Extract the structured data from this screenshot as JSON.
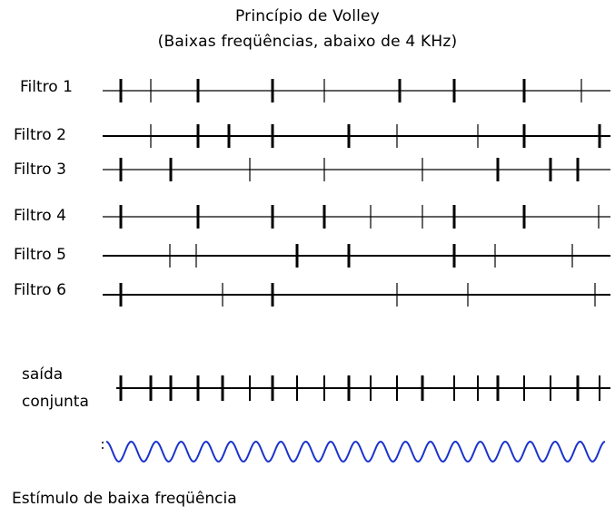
{
  "title": "Princípio de Volley",
  "subtitle": "(Baixas freqüências, abaixo de 4 KHz)",
  "filters": [
    {
      "label": "Filtro 1",
      "thick": [
        133,
        218,
        300,
        440,
        500,
        577
      ],
      "thin": [
        166,
        357,
        640
      ]
    },
    {
      "label": "Filtro 2",
      "thick": [
        218,
        252,
        300,
        384,
        577,
        660
      ],
      "thin": [
        166,
        437,
        526
      ]
    },
    {
      "label": "Filtro 3",
      "thick": [
        133,
        188,
        548,
        606,
        636
      ],
      "thin": [
        275,
        357,
        465
      ]
    },
    {
      "label": "Filtro 4",
      "thick": [
        133,
        218,
        300,
        357,
        500,
        577
      ],
      "thin": [
        408,
        465,
        659
      ]
    },
    {
      "label": "Filtro 5",
      "thick": [
        327,
        384,
        500
      ],
      "thin": [
        187,
        216,
        545,
        630
      ]
    },
    {
      "label": "Filtro 6",
      "thick": [
        133,
        300
      ],
      "thin": [
        245,
        437,
        515,
        655
      ]
    }
  ],
  "combined": {
    "label_line1": "saída",
    "label_line2": "conjunta",
    "ticks": [
      133,
      166,
      188,
      218,
      245,
      275,
      300,
      327,
      357,
      384,
      408,
      437,
      465,
      500,
      526,
      548,
      577,
      606,
      636,
      660
    ]
  },
  "stimulus": {
    "label": "Estímulo de baixa freqüência",
    "color": "#1a33cc",
    "cycles": 20
  }
}
